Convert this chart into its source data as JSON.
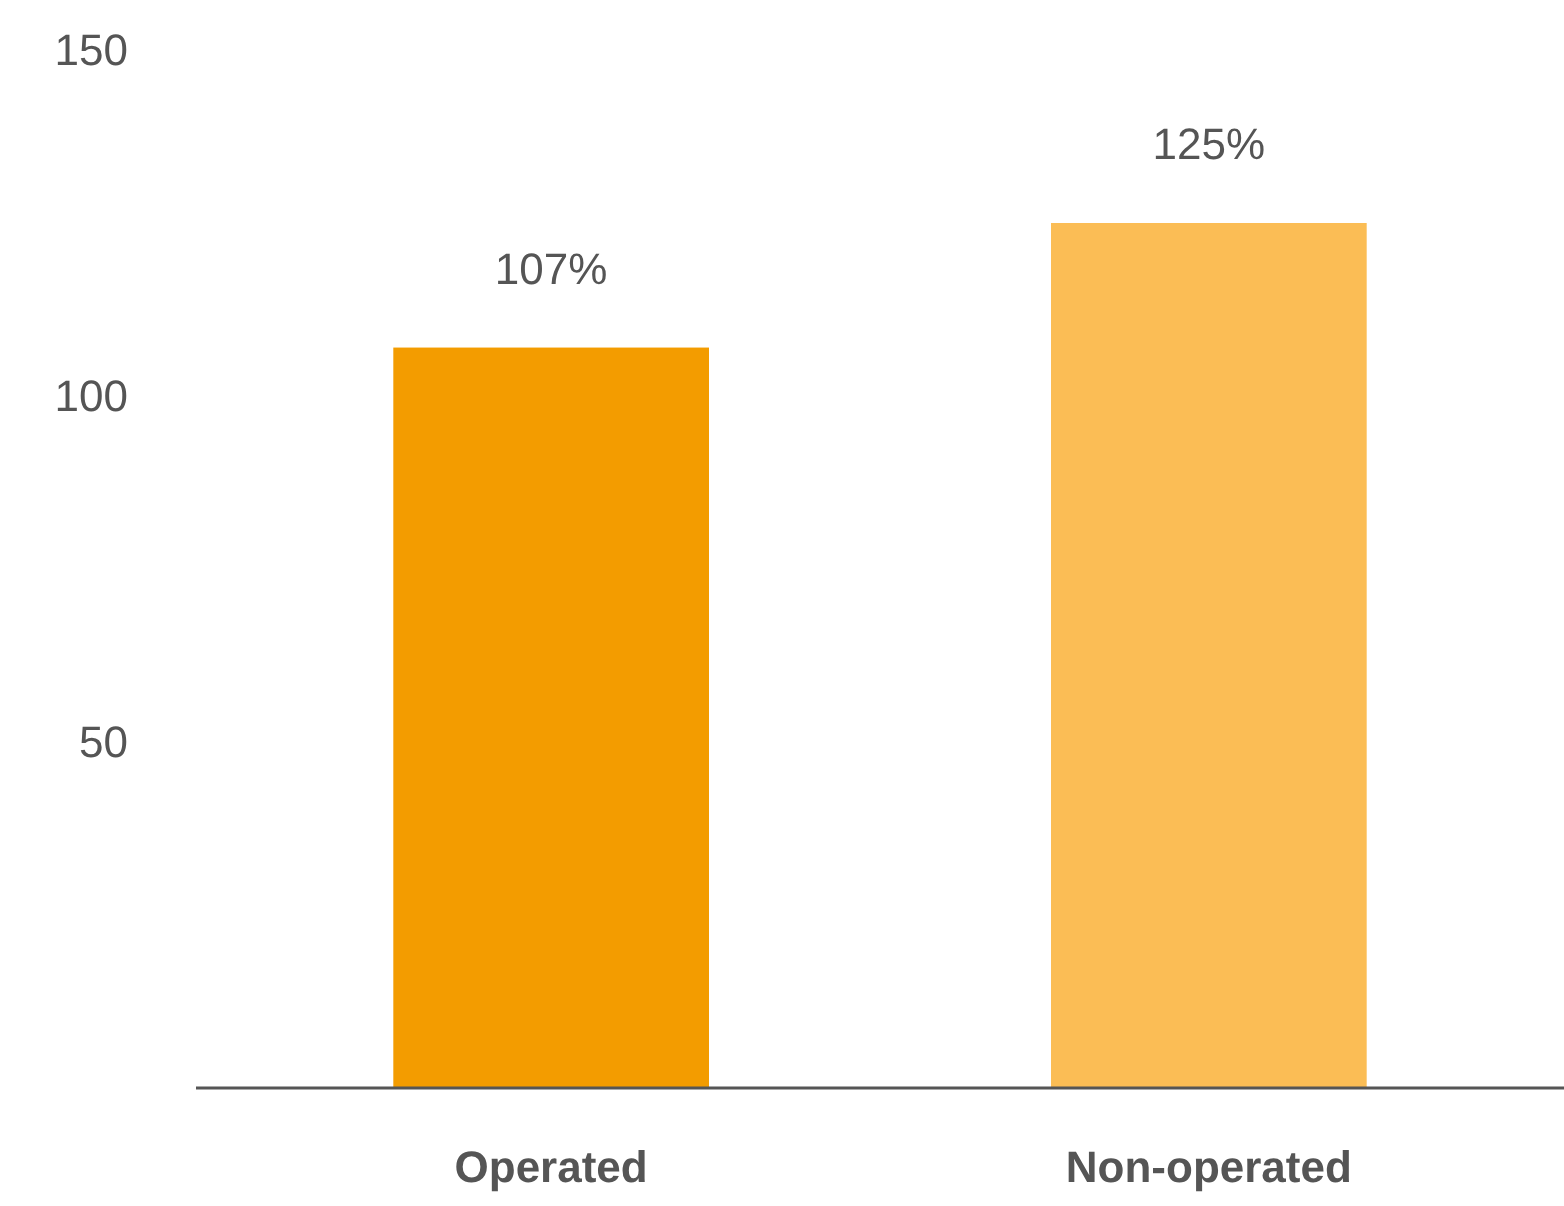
{
  "chart_data": {
    "type": "bar",
    "categories": [
      "Operated",
      "Non-operated"
    ],
    "values": [
      107,
      125
    ],
    "colors": [
      "#f39c00",
      "#fbbd55"
    ],
    "value_labels": [
      "107%",
      "125%"
    ],
    "ylim": [
      0,
      150
    ],
    "yticks": [
      50,
      100,
      150
    ],
    "grid": false
  }
}
